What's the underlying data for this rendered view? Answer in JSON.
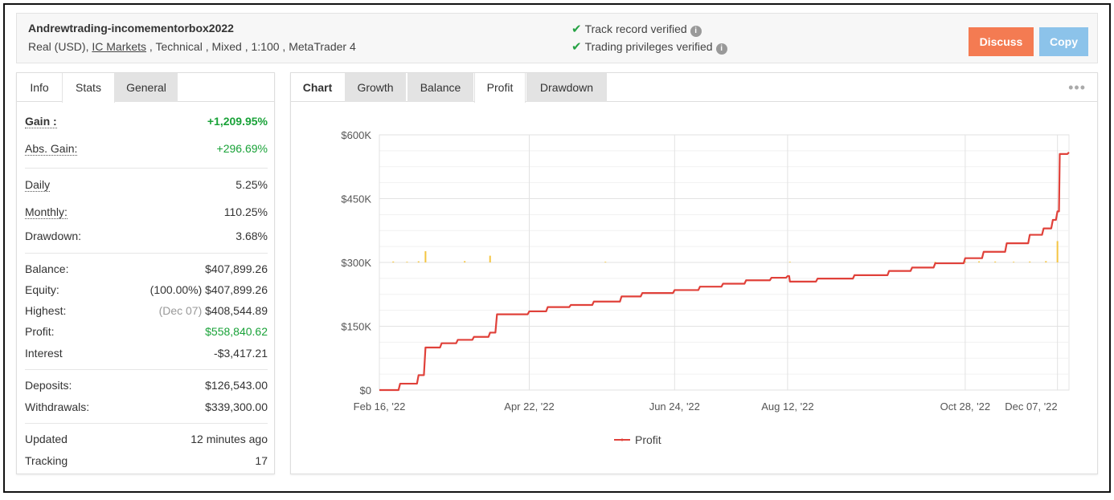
{
  "account": {
    "name": "Andrewtrading-incomementorbox2022",
    "meta_prefix": "Real (USD), ",
    "broker": "IC Markets",
    "meta_suffix": " , Technical , Mixed , 1:100 , MetaTrader 4"
  },
  "verification": [
    {
      "label": "Track record verified",
      "icon": "check-icon"
    },
    {
      "label": "Trading privileges verified",
      "icon": "check-icon"
    }
  ],
  "buttons": {
    "discuss": "Discuss",
    "copy": "Copy"
  },
  "left_tabs": [
    "Info",
    "Stats",
    "General"
  ],
  "stats": {
    "gain": {
      "label": "Gain :",
      "value": "+1,209.95%"
    },
    "abs_gain": {
      "label": "Abs. Gain:",
      "value": "+296.69%"
    },
    "daily": {
      "label": "Daily",
      "value": "5.25%"
    },
    "monthly": {
      "label": "Monthly:",
      "value": "110.25%"
    },
    "drawdown": {
      "label": "Drawdown:",
      "value": "3.68%"
    },
    "balance": {
      "label": "Balance:",
      "value": "$407,899.26"
    },
    "equity": {
      "label": "Equity:",
      "prefix": "(100.00%)",
      "value": "$407,899.26"
    },
    "highest": {
      "label": "Highest:",
      "prefix": "(Dec 07)",
      "value": "$408,544.89"
    },
    "profit": {
      "label": "Profit:",
      "value": "$558,840.62"
    },
    "interest": {
      "label": "Interest",
      "value": "-$3,417.21"
    },
    "deposits": {
      "label": "Deposits:",
      "value": "$126,543.00"
    },
    "withdrawals": {
      "label": "Withdrawals:",
      "value": "$339,300.00"
    },
    "updated": {
      "label": "Updated",
      "value": "12 minutes ago"
    },
    "tracking": {
      "label": "Tracking",
      "value": "17"
    }
  },
  "chart_tabs": [
    "Chart",
    "Growth",
    "Balance",
    "Profit",
    "Drawdown"
  ],
  "active_chart_tab": "Profit",
  "colors": {
    "line": "#e0413a",
    "bars": "#f4c542",
    "gain_green": "#19a238",
    "discuss": "#f47b52",
    "copy": "#8cc3ea"
  },
  "chart_data": {
    "type": "line",
    "title": "",
    "xlabel": "",
    "ylabel": "",
    "ylim": [
      0,
      600000
    ],
    "yticks": [
      0,
      150000,
      300000,
      450000,
      600000
    ],
    "ytick_labels": [
      "$0",
      "$150K",
      "$300K",
      "$450K",
      "$600K"
    ],
    "xtick_labels": [
      "Feb 16, '22",
      "Apr 22, '22",
      "Jun 24, '22",
      "Aug 12, '22",
      "Oct 28, '22",
      "Dec 07, '22"
    ],
    "grid": true,
    "legend": "bottom",
    "series": [
      {
        "name": "Profit",
        "x": [
          "Feb 16, '22",
          "Feb 25, '22",
          "Mar 05, '22",
          "Mar 08, '22",
          "Mar 15, '22",
          "Mar 22, '22",
          "Mar 29, '22",
          "Apr 05, '22",
          "Apr 08, '22",
          "Apr 22, '22",
          "Apr 30, '22",
          "May 10, '22",
          "May 20, '22",
          "Jun 01, '22",
          "Jun 10, '22",
          "Jun 24, '22",
          "Jul 05, '22",
          "Jul 15, '22",
          "Jul 25, '22",
          "Aug 05, '22",
          "Aug 12, '22",
          "Aug 13, '22",
          "Aug 25, '22",
          "Sep 10, '22",
          "Sep 25, '22",
          "Oct 05, '22",
          "Oct 15, '22",
          "Oct 28, '22",
          "Nov 05, '22",
          "Nov 15, '22",
          "Nov 25, '22",
          "Dec 01, '22",
          "Dec 05, '22",
          "Dec 07, '22",
          "Dec 08, '22",
          "Dec 12, '22"
        ],
        "values": [
          0,
          15000,
          35000,
          100000,
          110000,
          118000,
          125000,
          135000,
          178000,
          185000,
          195000,
          200000,
          208000,
          220000,
          228000,
          235000,
          243000,
          250000,
          258000,
          264000,
          268000,
          255000,
          262000,
          270000,
          280000,
          288000,
          298000,
          310000,
          325000,
          345000,
          365000,
          380000,
          400000,
          420000,
          555000,
          558840
        ]
      }
    ],
    "volume_bars": {
      "x": [
        "Feb 22, '22",
        "Feb 28, '22",
        "Mar 05, '22",
        "Mar 08, '22",
        "Mar 25, '22",
        "Apr 05, '22",
        "May 25, '22",
        "Aug 13, '22",
        "Oct 15, '22",
        "Oct 28, '22",
        "Nov 03, '22",
        "Nov 10, '22",
        "Nov 18, '22",
        "Nov 25, '22",
        "Dec 02, '22",
        "Dec 07, '22"
      ],
      "values": [
        4000,
        3000,
        5000,
        50000,
        6000,
        30000,
        3000,
        3000,
        3000,
        4000,
        5000,
        4000,
        3000,
        4000,
        6000,
        95000
      ]
    }
  }
}
